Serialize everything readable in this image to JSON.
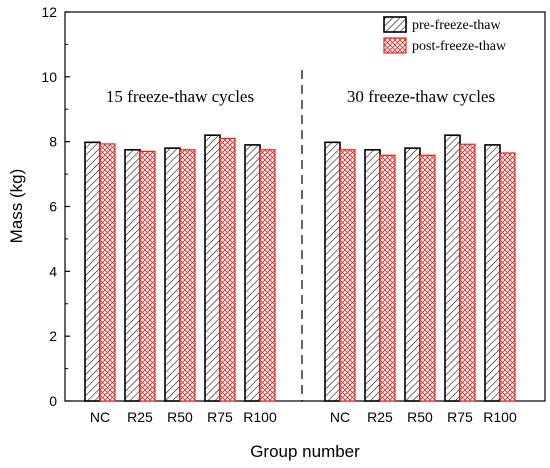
{
  "chart_data": {
    "type": "bar",
    "xlabel": "Group number",
    "ylabel": "Mass (kg)",
    "ylim": [
      0,
      12
    ],
    "yticks": [
      "0",
      "2",
      "4",
      "6",
      "8",
      "10",
      "12"
    ],
    "legend_position": "top-right",
    "grid": false,
    "series": [
      {
        "name": "pre-freeze-thaw",
        "pattern": "diagonal-hatch",
        "color": "#000000"
      },
      {
        "name": "post-freeze-thaw",
        "pattern": "cross-hatch",
        "color": "#e8221e"
      }
    ],
    "groups": [
      {
        "label": "15 freeze-thaw cycles",
        "categories": [
          "NC",
          "R25",
          "R50",
          "R75",
          "R100"
        ],
        "pre": [
          7.98,
          7.75,
          7.8,
          8.2,
          7.9
        ],
        "post": [
          7.93,
          7.7,
          7.75,
          8.1,
          7.75
        ]
      },
      {
        "label": "30 freeze-thaw cycles",
        "categories": [
          "NC",
          "R25",
          "R50",
          "R75",
          "R100"
        ],
        "pre": [
          7.98,
          7.75,
          7.8,
          8.2,
          7.9
        ],
        "post": [
          7.75,
          7.58,
          7.58,
          7.92,
          7.65
        ]
      }
    ]
  }
}
